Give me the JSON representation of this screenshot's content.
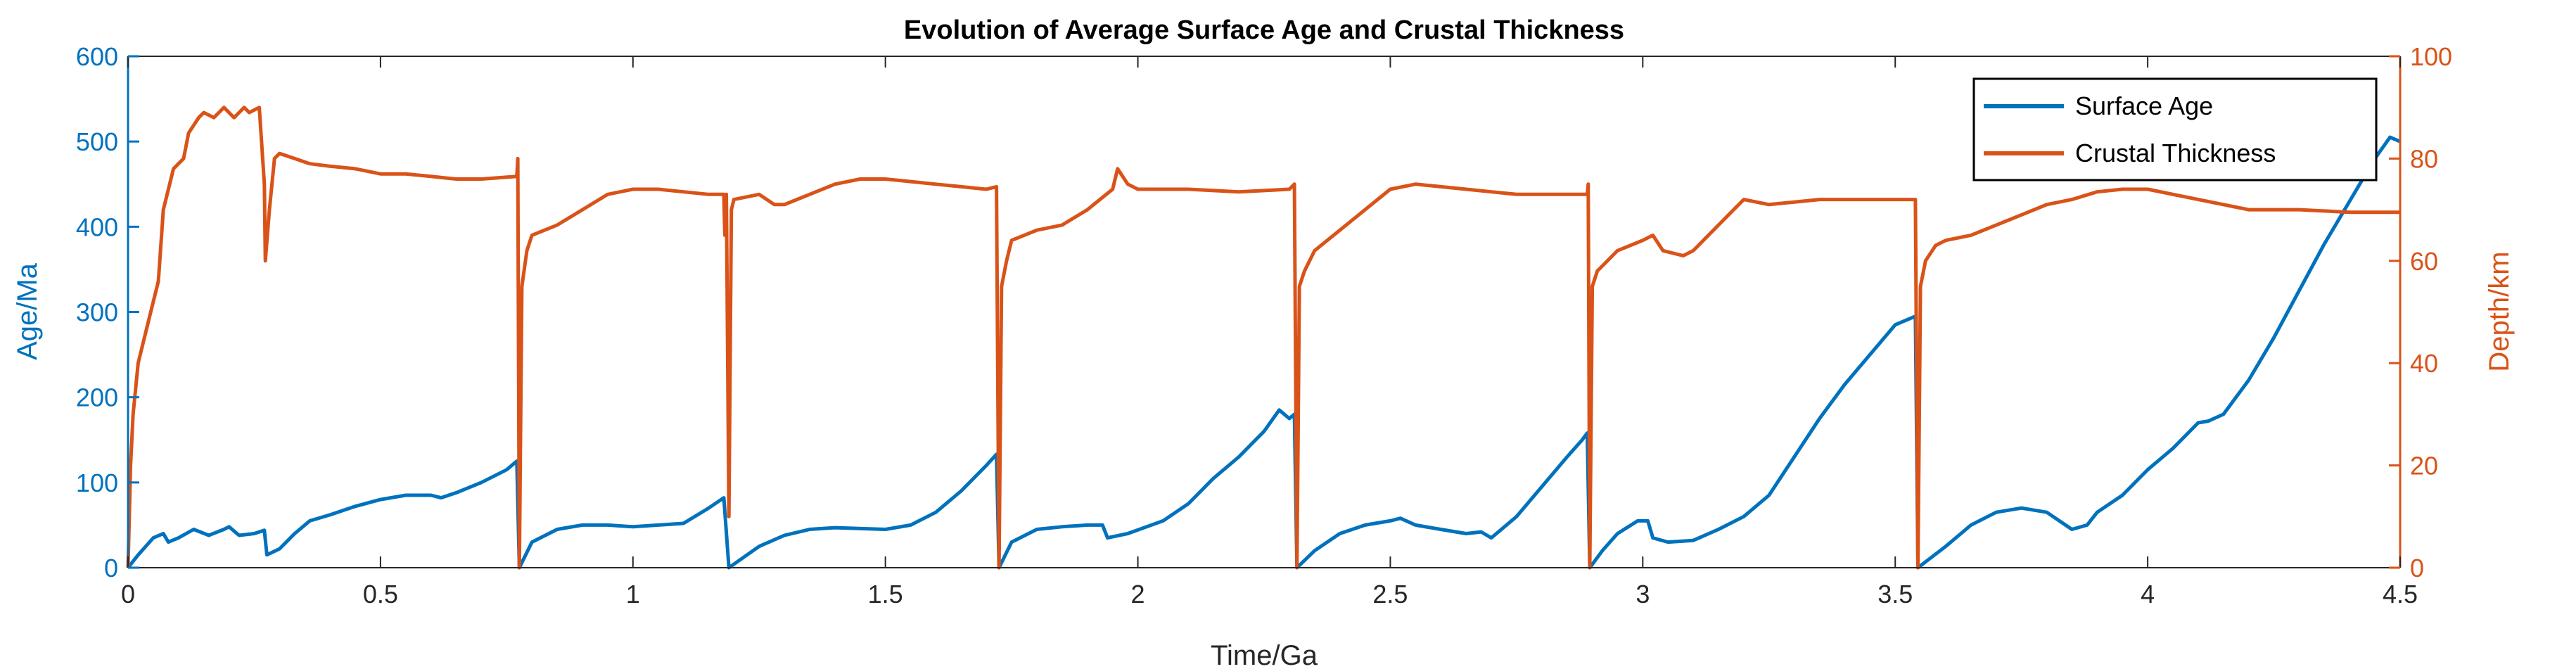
{
  "chart_data": {
    "type": "line",
    "title": "Evolution of Average Surface Age and Crustal Thickness",
    "xlabel": "Time/Ga",
    "ylabel_left": "Age/Ma",
    "ylabel_right": "Depth/km",
    "xlim": [
      0,
      4.5
    ],
    "ylim_left": [
      0,
      600
    ],
    "ylim_right": [
      0,
      100
    ],
    "xticks": [
      "0",
      "0.5",
      "1",
      "1.5",
      "2",
      "2.5",
      "3",
      "3.5",
      "4",
      "4.5"
    ],
    "yticks_left": [
      "0",
      "100",
      "200",
      "300",
      "400",
      "500",
      "600"
    ],
    "yticks_right": [
      "0",
      "20",
      "40",
      "60",
      "80",
      "100"
    ],
    "grid": false,
    "legend_position": "top-right",
    "colors": {
      "age": "#0072BD",
      "thickness": "#D95319"
    },
    "series": [
      {
        "name": "Surface Age",
        "axis": "left",
        "points": [
          [
            0,
            0
          ],
          [
            0.02,
            15
          ],
          [
            0.05,
            35
          ],
          [
            0.07,
            40
          ],
          [
            0.08,
            30
          ],
          [
            0.1,
            35
          ],
          [
            0.13,
            45
          ],
          [
            0.16,
            38
          ],
          [
            0.19,
            45
          ],
          [
            0.2,
            48
          ],
          [
            0.22,
            38
          ],
          [
            0.25,
            40
          ],
          [
            0.27,
            44
          ],
          [
            0.275,
            15
          ],
          [
            0.3,
            22
          ],
          [
            0.33,
            40
          ],
          [
            0.36,
            55
          ],
          [
            0.4,
            62
          ],
          [
            0.45,
            72
          ],
          [
            0.5,
            80
          ],
          [
            0.55,
            85
          ],
          [
            0.6,
            85
          ],
          [
            0.62,
            82
          ],
          [
            0.65,
            88
          ],
          [
            0.7,
            100
          ],
          [
            0.75,
            115
          ],
          [
            0.77,
            125
          ],
          [
            0.775,
            0
          ],
          [
            0.8,
            30
          ],
          [
            0.85,
            45
          ],
          [
            0.9,
            50
          ],
          [
            0.95,
            50
          ],
          [
            1.0,
            48
          ],
          [
            1.05,
            50
          ],
          [
            1.1,
            52
          ],
          [
            1.15,
            70
          ],
          [
            1.18,
            82
          ],
          [
            1.19,
            0
          ],
          [
            1.25,
            25
          ],
          [
            1.3,
            38
          ],
          [
            1.35,
            45
          ],
          [
            1.4,
            47
          ],
          [
            1.5,
            45
          ],
          [
            1.55,
            50
          ],
          [
            1.6,
            65
          ],
          [
            1.65,
            90
          ],
          [
            1.7,
            120
          ],
          [
            1.72,
            133
          ],
          [
            1.725,
            0
          ],
          [
            1.75,
            30
          ],
          [
            1.8,
            45
          ],
          [
            1.85,
            48
          ],
          [
            1.9,
            50
          ],
          [
            1.93,
            50
          ],
          [
            1.94,
            35
          ],
          [
            1.98,
            40
          ],
          [
            2.05,
            55
          ],
          [
            2.1,
            75
          ],
          [
            2.15,
            105
          ],
          [
            2.2,
            130
          ],
          [
            2.25,
            160
          ],
          [
            2.28,
            185
          ],
          [
            2.3,
            175
          ],
          [
            2.31,
            180
          ],
          [
            2.315,
            0
          ],
          [
            2.35,
            20
          ],
          [
            2.4,
            40
          ],
          [
            2.45,
            50
          ],
          [
            2.5,
            55
          ],
          [
            2.52,
            58
          ],
          [
            2.55,
            50
          ],
          [
            2.6,
            45
          ],
          [
            2.65,
            40
          ],
          [
            2.68,
            42
          ],
          [
            2.7,
            35
          ],
          [
            2.75,
            60
          ],
          [
            2.8,
            95
          ],
          [
            2.85,
            130
          ],
          [
            2.88,
            150
          ],
          [
            2.89,
            158
          ],
          [
            2.895,
            0
          ],
          [
            2.92,
            20
          ],
          [
            2.95,
            40
          ],
          [
            2.99,
            55
          ],
          [
            3.01,
            55
          ],
          [
            3.02,
            35
          ],
          [
            3.05,
            30
          ],
          [
            3.1,
            32
          ],
          [
            3.15,
            45
          ],
          [
            3.2,
            60
          ],
          [
            3.25,
            85
          ],
          [
            3.3,
            130
          ],
          [
            3.35,
            175
          ],
          [
            3.4,
            215
          ],
          [
            3.45,
            250
          ],
          [
            3.5,
            285
          ],
          [
            3.54,
            295
          ],
          [
            3.545,
            0
          ],
          [
            3.6,
            25
          ],
          [
            3.65,
            50
          ],
          [
            3.7,
            65
          ],
          [
            3.75,
            70
          ],
          [
            3.8,
            65
          ],
          [
            3.85,
            45
          ],
          [
            3.88,
            50
          ],
          [
            3.9,
            65
          ],
          [
            3.95,
            85
          ],
          [
            4.0,
            115
          ],
          [
            4.05,
            140
          ],
          [
            4.1,
            170
          ],
          [
            4.12,
            172
          ],
          [
            4.15,
            180
          ],
          [
            4.2,
            220
          ],
          [
            4.25,
            270
          ],
          [
            4.3,
            325
          ],
          [
            4.35,
            380
          ],
          [
            4.4,
            430
          ],
          [
            4.45,
            480
          ],
          [
            4.48,
            505
          ],
          [
            4.5,
            500
          ]
        ]
      },
      {
        "name": "Crustal Thickness",
        "axis": "right",
        "points": [
          [
            0,
            0
          ],
          [
            0.005,
            20
          ],
          [
            0.01,
            30
          ],
          [
            0.02,
            40
          ],
          [
            0.04,
            48
          ],
          [
            0.06,
            56
          ],
          [
            0.07,
            70
          ],
          [
            0.09,
            78
          ],
          [
            0.11,
            80
          ],
          [
            0.12,
            85
          ],
          [
            0.14,
            88
          ],
          [
            0.15,
            89
          ],
          [
            0.17,
            88
          ],
          [
            0.19,
            90
          ],
          [
            0.21,
            88
          ],
          [
            0.23,
            90
          ],
          [
            0.24,
            89
          ],
          [
            0.26,
            90
          ],
          [
            0.27,
            75
          ],
          [
            0.272,
            60
          ],
          [
            0.28,
            70
          ],
          [
            0.29,
            80
          ],
          [
            0.3,
            81
          ],
          [
            0.33,
            80
          ],
          [
            0.36,
            79
          ],
          [
            0.4,
            78.5
          ],
          [
            0.45,
            78
          ],
          [
            0.5,
            77
          ],
          [
            0.55,
            77
          ],
          [
            0.6,
            76.5
          ],
          [
            0.65,
            76
          ],
          [
            0.7,
            76
          ],
          [
            0.77,
            76.5
          ],
          [
            0.772,
            80
          ],
          [
            0.775,
            0
          ],
          [
            0.78,
            55
          ],
          [
            0.79,
            62
          ],
          [
            0.8,
            65
          ],
          [
            0.85,
            67
          ],
          [
            0.9,
            70
          ],
          [
            0.95,
            73
          ],
          [
            1.0,
            74
          ],
          [
            1.05,
            74
          ],
          [
            1.1,
            73.5
          ],
          [
            1.15,
            73
          ],
          [
            1.18,
            73
          ],
          [
            1.182,
            65
          ],
          [
            1.185,
            73
          ],
          [
            1.19,
            10
          ],
          [
            1.195,
            70
          ],
          [
            1.2,
            72
          ],
          [
            1.25,
            73
          ],
          [
            1.28,
            71
          ],
          [
            1.3,
            71
          ],
          [
            1.35,
            73
          ],
          [
            1.4,
            75
          ],
          [
            1.45,
            76
          ],
          [
            1.5,
            76
          ],
          [
            1.55,
            75.5
          ],
          [
            1.6,
            75
          ],
          [
            1.65,
            74.5
          ],
          [
            1.7,
            74
          ],
          [
            1.72,
            74.5
          ],
          [
            1.725,
            0
          ],
          [
            1.73,
            55
          ],
          [
            1.74,
            60
          ],
          [
            1.75,
            64
          ],
          [
            1.8,
            66
          ],
          [
            1.85,
            67
          ],
          [
            1.9,
            70
          ],
          [
            1.95,
            74
          ],
          [
            1.96,
            78
          ],
          [
            1.98,
            75
          ],
          [
            2.0,
            74
          ],
          [
            2.1,
            74
          ],
          [
            2.2,
            73.5
          ],
          [
            2.3,
            74
          ],
          [
            2.31,
            75
          ],
          [
            2.315,
            0
          ],
          [
            2.32,
            55
          ],
          [
            2.33,
            58
          ],
          [
            2.35,
            62
          ],
          [
            2.4,
            66
          ],
          [
            2.45,
            70
          ],
          [
            2.5,
            74
          ],
          [
            2.55,
            75
          ],
          [
            2.6,
            74.5
          ],
          [
            2.65,
            74
          ],
          [
            2.7,
            73.5
          ],
          [
            2.75,
            73
          ],
          [
            2.8,
            73
          ],
          [
            2.85,
            73
          ],
          [
            2.89,
            73
          ],
          [
            2.892,
            75
          ],
          [
            2.895,
            0
          ],
          [
            2.9,
            55
          ],
          [
            2.91,
            58
          ],
          [
            2.93,
            60
          ],
          [
            2.95,
            62
          ],
          [
            3.0,
            64
          ],
          [
            3.02,
            65
          ],
          [
            3.04,
            62
          ],
          [
            3.08,
            61
          ],
          [
            3.1,
            62
          ],
          [
            3.15,
            67
          ],
          [
            3.18,
            70
          ],
          [
            3.2,
            72
          ],
          [
            3.25,
            71
          ],
          [
            3.3,
            71.5
          ],
          [
            3.35,
            72
          ],
          [
            3.4,
            72
          ],
          [
            3.5,
            72
          ],
          [
            3.54,
            72
          ],
          [
            3.545,
            0
          ],
          [
            3.55,
            55
          ],
          [
            3.56,
            60
          ],
          [
            3.58,
            63
          ],
          [
            3.6,
            64
          ],
          [
            3.65,
            65
          ],
          [
            3.7,
            67
          ],
          [
            3.75,
            69
          ],
          [
            3.8,
            71
          ],
          [
            3.85,
            72
          ],
          [
            3.9,
            73.5
          ],
          [
            3.95,
            74
          ],
          [
            4.0,
            74
          ],
          [
            4.05,
            73
          ],
          [
            4.1,
            72
          ],
          [
            4.15,
            71
          ],
          [
            4.2,
            70
          ],
          [
            4.25,
            70
          ],
          [
            4.3,
            70
          ],
          [
            4.4,
            69.5
          ],
          [
            4.5,
            69.5
          ]
        ]
      }
    ]
  }
}
